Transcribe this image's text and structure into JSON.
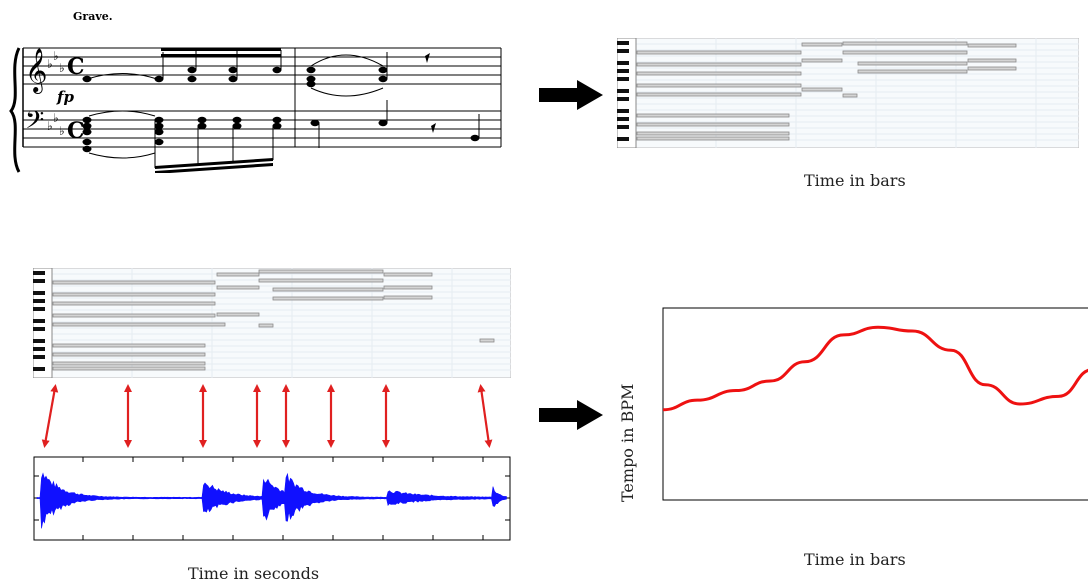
{
  "score": {
    "tempo_marking": "Grave.",
    "dynamic": "fp",
    "time_signature": "C"
  },
  "top_pianoroll": {
    "x_label": "Time in bars"
  },
  "bottom_left": {
    "x_label": "Time in seconds"
  },
  "tempo_chart": {
    "x_label": "Time in bars",
    "y_label": "Tempo in BPM"
  },
  "colors": {
    "arrow_fill": "#000000",
    "alignment_arrows": "#e02020",
    "waveform": "#1010ff",
    "tempo_curve": "#ee1111",
    "note_fill": "#d4d4d4",
    "note_stroke": "#8a8a8a",
    "grid": "#e6ecf2"
  },
  "chart_data": {
    "type": "line",
    "title": "",
    "xlabel": "Time in bars",
    "ylabel": "Tempo in BPM",
    "ticks_shown": false,
    "series": [
      {
        "values": [
          0.47,
          0.52,
          0.57,
          0.62,
          0.72,
          0.86,
          0.9,
          0.88,
          0.78,
          0.6,
          0.5,
          0.54,
          0.68
        ],
        "x": [
          0,
          0.08,
          0.17,
          0.25,
          0.33,
          0.42,
          0.5,
          0.58,
          0.67,
          0.75,
          0.83,
          0.92,
          1.0
        ]
      }
    ]
  }
}
